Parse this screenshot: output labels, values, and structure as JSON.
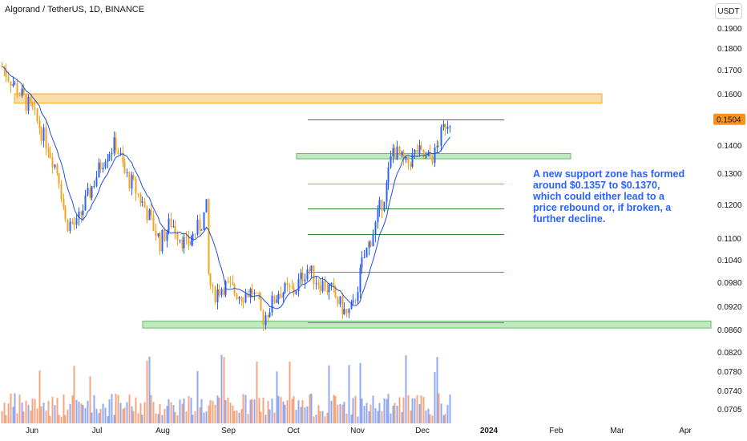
{
  "header": {
    "title": "Algorand / TetherUS, 1D, BINANCE",
    "currency_button": "USDT"
  },
  "annotation": {
    "text": "A new support zone has formed around $0.1357 to $0.1370, which could either lead to a price rebound or, if broken, a further decline."
  },
  "colors": {
    "up": "#2962ff",
    "down": "#f7a21b",
    "ma": "#1e4fd8",
    "support_fill": "#b7e4b6",
    "support_border": "#4caf50",
    "resistance_fill": "#fcd699",
    "resistance_border": "#f59b00",
    "price_badge": "#f7931a",
    "volume_up": "#92a8f0",
    "volume_down": "#f4a582"
  },
  "chart_data": {
    "type": "candlestick",
    "symbol": "Algorand / TetherUS",
    "interval": "1D",
    "exchange": "BINANCE",
    "quote_currency": "USDT",
    "last_price": "0.1504",
    "y_axis_ticks": [
      "0.1900",
      "0.1800",
      "0.1700",
      "0.1600",
      "0.1400",
      "0.1300",
      "0.1200",
      "0.1100",
      "0.1040",
      "0.0980",
      "0.0920",
      "0.0860",
      "0.0820",
      "0.0780",
      "0.0740",
      "0.0705"
    ],
    "x_axis_ticks": [
      {
        "label": "Jun",
        "bold": false
      },
      {
        "label": "Jul",
        "bold": false
      },
      {
        "label": "Aug",
        "bold": false
      },
      {
        "label": "Sep",
        "bold": false
      },
      {
        "label": "Oct",
        "bold": false
      },
      {
        "label": "Nov",
        "bold": false
      },
      {
        "label": "Dec",
        "bold": false
      },
      {
        "label": "2024",
        "bold": true
      },
      {
        "label": "Feb",
        "bold": false
      },
      {
        "label": "Mar",
        "bold": false
      },
      {
        "label": "Apr",
        "bold": false
      }
    ],
    "zones": [
      {
        "name": "resistance",
        "low": 0.157,
        "high": 0.16
      },
      {
        "name": "support",
        "low": 0.1357,
        "high": 0.137
      },
      {
        "name": "support",
        "low": 0.0868,
        "high": 0.0882
      }
    ],
    "fib_levels": [
      {
        "value": 0.1504,
        "color": "#2e7d32"
      },
      {
        "value": 0.127,
        "color": "#f59b00"
      },
      {
        "value": 0.119,
        "color": "#2e7d32"
      },
      {
        "value": 0.1115,
        "color": "#2e7d32"
      },
      {
        "value": 0.101,
        "color": "#26a69a"
      },
      {
        "value": 0.088,
        "color": "#787b86"
      }
    ],
    "price_waypoints": [
      {
        "date": "2023-05-15",
        "close": 0.172
      },
      {
        "date": "2023-05-22",
        "close": 0.162
      },
      {
        "date": "2023-05-29",
        "close": 0.153
      },
      {
        "date": "2023-06-05",
        "close": 0.14
      },
      {
        "date": "2023-06-10",
        "close": 0.129
      },
      {
        "date": "2023-06-13",
        "close": 0.115
      },
      {
        "date": "2023-06-18",
        "close": 0.114
      },
      {
        "date": "2023-06-25",
        "close": 0.126
      },
      {
        "date": "2023-07-01",
        "close": 0.137
      },
      {
        "date": "2023-07-06",
        "close": 0.141
      },
      {
        "date": "2023-07-10",
        "close": 0.13
      },
      {
        "date": "2023-07-14",
        "close": 0.126
      },
      {
        "date": "2023-07-20",
        "close": 0.118
      },
      {
        "date": "2023-07-26",
        "close": 0.109
      },
      {
        "date": "2023-07-31",
        "close": 0.115
      },
      {
        "date": "2023-08-07",
        "close": 0.108
      },
      {
        "date": "2023-08-14",
        "close": 0.115
      },
      {
        "date": "2023-08-16",
        "close": 0.119
      },
      {
        "date": "2023-08-17",
        "close": 0.1
      },
      {
        "date": "2023-08-19",
        "close": 0.095
      },
      {
        "date": "2023-08-24",
        "close": 0.0975
      },
      {
        "date": "2023-09-01",
        "close": 0.095
      },
      {
        "date": "2023-09-06",
        "close": 0.096
      },
      {
        "date": "2023-09-11",
        "close": 0.089
      },
      {
        "date": "2023-09-18",
        "close": 0.096
      },
      {
        "date": "2023-09-25",
        "close": 0.096
      },
      {
        "date": "2023-10-01",
        "close": 0.102
      },
      {
        "date": "2023-10-05",
        "close": 0.099
      },
      {
        "date": "2023-10-12",
        "close": 0.096
      },
      {
        "date": "2023-10-19",
        "close": 0.09
      },
      {
        "date": "2023-10-22",
        "close": 0.092
      },
      {
        "date": "2023-10-26",
        "close": 0.103
      },
      {
        "date": "2023-11-01",
        "close": 0.114
      },
      {
        "date": "2023-11-06",
        "close": 0.126
      },
      {
        "date": "2023-11-09",
        "close": 0.139
      },
      {
        "date": "2023-11-15",
        "close": 0.133
      },
      {
        "date": "2023-11-20",
        "close": 0.138
      },
      {
        "date": "2023-11-24",
        "close": 0.135
      },
      {
        "date": "2023-11-28",
        "close": 0.137
      },
      {
        "date": "2023-12-03",
        "close": 0.149
      },
      {
        "date": "2023-12-05",
        "close": 0.1504
      }
    ],
    "ma_color": "#1e4fd8"
  }
}
